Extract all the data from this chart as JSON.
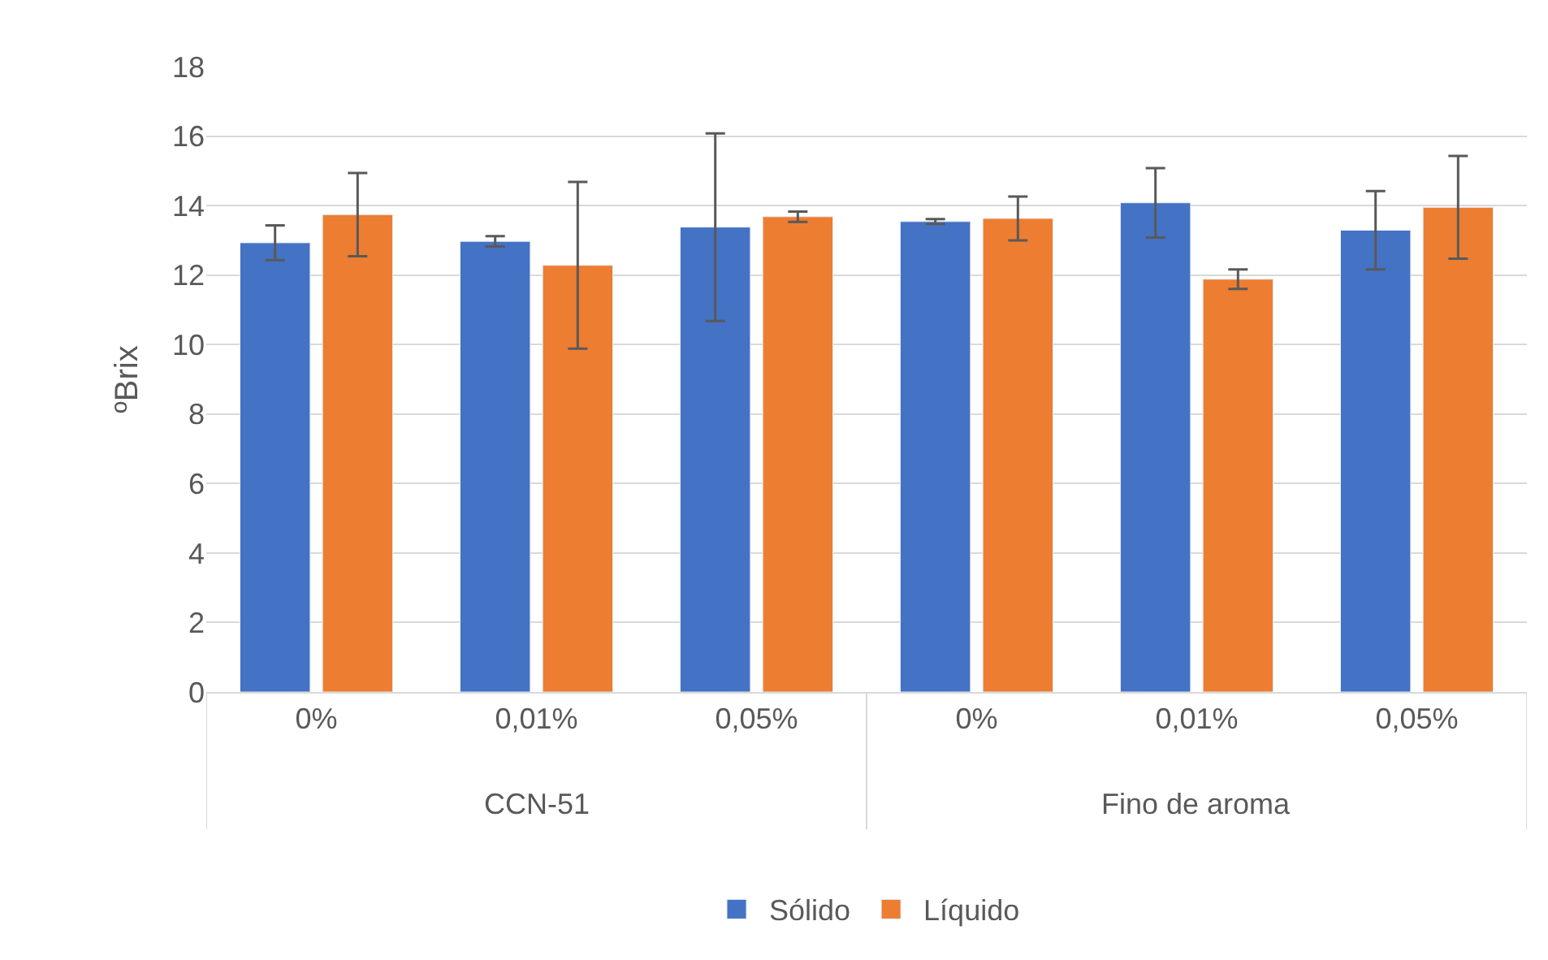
{
  "chart_data": {
    "type": "bar",
    "ylabel": "ºBrix",
    "categories": [
      "0%",
      "0,01%",
      "0,05%",
      "0%",
      "0,01%",
      "0,05%"
    ],
    "annotations": [
      "CCN-51",
      "Fino de aroma"
    ],
    "series": [
      {
        "name": "Sólido",
        "color": "#4472c4",
        "values": [
          12.93,
          12.97,
          13.38,
          13.54,
          14.08,
          13.29
        ],
        "errors": [
          0.5,
          0.15,
          2.7,
          0.07,
          1.0,
          1.13
        ]
      },
      {
        "name": "Líquido",
        "color": "#ed7d31",
        "values": [
          13.74,
          12.28,
          13.68,
          13.63,
          11.88,
          13.95
        ],
        "errors": [
          1.2,
          2.4,
          0.15,
          0.63,
          0.28,
          1.48
        ]
      }
    ],
    "ylim": [
      0,
      18
    ],
    "yticks": [
      0,
      2,
      4,
      6,
      8,
      10,
      12,
      14,
      16,
      18
    ],
    "grid": "y",
    "legend": "bottom"
  }
}
